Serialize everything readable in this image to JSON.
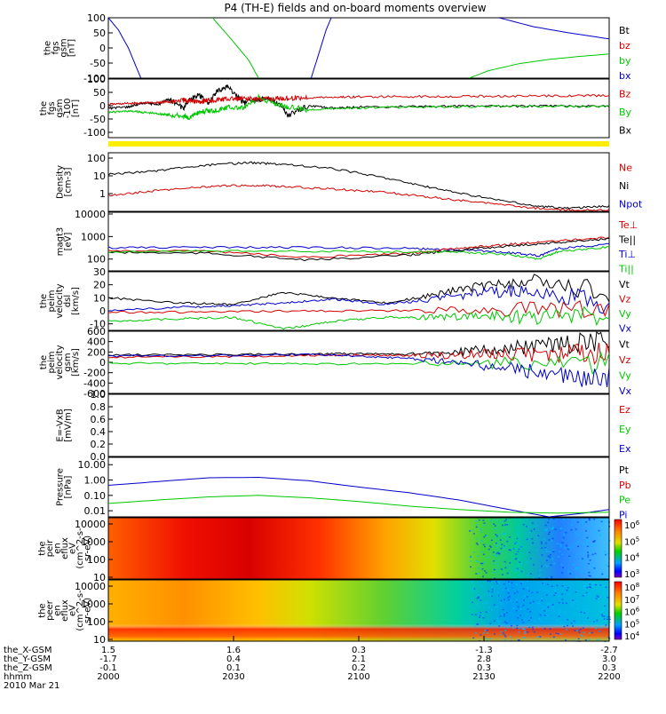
{
  "title": "P4 (TH-E) fields and on-board moments overview",
  "colors": {
    "black": "#000000",
    "red": "#d40000",
    "green": "#00c800",
    "blue": "#0000c8",
    "yellow": "#ffee00"
  },
  "time_axis": {
    "ticks": [
      "2000",
      "2030",
      "2100",
      "2130",
      "2200"
    ],
    "ephemeris": [
      {
        "label": "the_X-GSM",
        "values": [
          "1.5",
          "1.6",
          "0.3",
          "-1.3",
          "-2.7"
        ]
      },
      {
        "label": "the_Y-GSM",
        "values": [
          "-1.7",
          "0.4",
          "2.1",
          "2.8",
          "3.0"
        ]
      },
      {
        "label": "the_Z-GSM",
        "values": [
          "-0.1",
          "0.1",
          "0.2",
          "0.3",
          "0.3"
        ]
      },
      {
        "label": "hhmm",
        "values": [
          "2000",
          "2030",
          "2100",
          "2130",
          "2200"
        ]
      }
    ],
    "date": "2010 Mar 21"
  },
  "chart_data": [
    {
      "type": "line",
      "panel": "fgs",
      "ylabel_lines": [
        "the",
        "fgs",
        "gsm",
        "[nT]"
      ],
      "yticks": [
        "100",
        "50",
        "0",
        "-50",
        "-100"
      ],
      "ylim": [
        -100,
        100
      ],
      "legend": [
        {
          "label": "Bt",
          "color": "black"
        },
        {
          "label": "bz",
          "color": "red"
        },
        {
          "label": "by",
          "color": "green"
        },
        {
          "label": "bx",
          "color": "blue"
        }
      ],
      "series": [
        {
          "name": "bx",
          "color": "blue",
          "segments": [
            [
              [
                0.0,
                100
              ],
              [
                0.02,
                60
              ],
              [
                0.04,
                0
              ],
              [
                0.055,
                -60
              ],
              [
                0.065,
                -100
              ]
            ],
            [
              [
                0.405,
                -100
              ],
              [
                0.42,
                -20
              ],
              [
                0.435,
                60
              ],
              [
                0.445,
                100
              ]
            ],
            [
              [
                0.78,
                100
              ],
              [
                0.85,
                70
              ],
              [
                0.92,
                50
              ],
              [
                1.0,
                30
              ]
            ]
          ]
        },
        {
          "name": "by",
          "color": "green",
          "segments": [
            [
              [
                0.208,
                100
              ],
              [
                0.25,
                20
              ],
              [
                0.28,
                -40
              ],
              [
                0.3,
                -100
              ]
            ],
            [
              [
                0.72,
                -100
              ],
              [
                0.76,
                -75
              ],
              [
                0.82,
                -52
              ],
              [
                0.88,
                -38
              ],
              [
                0.94,
                -28
              ],
              [
                1.0,
                -20
              ]
            ]
          ]
        }
      ]
    },
    {
      "type": "line",
      "panel": "fgs_zoom",
      "ylabel_lines": [
        "the",
        "fgs",
        "gsm",
        "-100",
        "[nT]"
      ],
      "yticks": [
        "100",
        "50",
        "0",
        "-50",
        "-100"
      ],
      "ylim": [
        -120,
        100
      ],
      "legend": [
        {
          "label": "Bz",
          "color": "red"
        },
        {
          "label": "By",
          "color": "green"
        },
        {
          "label": "Bx",
          "color": "black"
        }
      ],
      "series": [
        {
          "name": "Bx",
          "color": "black",
          "x": [
            0,
            0.04,
            0.07,
            0.1,
            0.12,
            0.15,
            0.16,
            0.18,
            0.2,
            0.22,
            0.24,
            0.27,
            0.3,
            0.33,
            0.36,
            0.4,
            0.45,
            0.5,
            0.6,
            0.7,
            0.8,
            0.9,
            1.0
          ],
          "y": [
            -10,
            -5,
            10,
            5,
            25,
            -10,
            20,
            40,
            10,
            60,
            70,
            10,
            25,
            20,
            -35,
            0,
            -10,
            -5,
            -3,
            -2,
            -2,
            -1,
            -1
          ]
        },
        {
          "name": "By",
          "color": "green",
          "x": [
            0,
            0.04,
            0.07,
            0.1,
            0.12,
            0.15,
            0.16,
            0.18,
            0.2,
            0.22,
            0.24,
            0.27,
            0.3,
            0.33,
            0.36,
            0.4,
            0.45,
            0.5,
            0.6,
            0.7,
            0.8,
            0.9,
            1.0
          ],
          "y": [
            -25,
            -20,
            -25,
            -30,
            -35,
            -40,
            -45,
            -25,
            -20,
            -15,
            -5,
            -10,
            30,
            10,
            -5,
            -15,
            -10,
            -8,
            -5,
            -4,
            -3,
            -3,
            -3
          ]
        },
        {
          "name": "Bz",
          "color": "red",
          "x": [
            0,
            0.04,
            0.07,
            0.1,
            0.12,
            0.15,
            0.16,
            0.18,
            0.2,
            0.22,
            0.24,
            0.27,
            0.3,
            0.33,
            0.36,
            0.4,
            0.45,
            0.5,
            0.6,
            0.7,
            0.8,
            0.9,
            1.0
          ],
          "y": [
            5,
            8,
            10,
            12,
            15,
            20,
            18,
            15,
            20,
            22,
            25,
            25,
            25,
            26,
            28,
            30,
            32,
            33,
            34,
            35,
            36,
            37,
            38
          ]
        }
      ]
    },
    {
      "type": "line",
      "panel": "density",
      "ylabel_lines": [
        "Density",
        "[cm-3]"
      ],
      "yticks": [
        "100",
        "10",
        "1"
      ],
      "yscale": "log",
      "ylim": [
        0.1,
        200
      ],
      "legend": [
        {
          "label": "Ne",
          "color": "red"
        },
        {
          "label": "Ni",
          "color": "black"
        },
        {
          "label": "Npot",
          "color": "blue"
        }
      ],
      "series": [
        {
          "name": "Ni",
          "color": "black",
          "x": [
            0,
            0.1,
            0.2,
            0.28,
            0.35,
            0.45,
            0.55,
            0.65,
            0.75,
            0.85,
            0.92,
            1.0
          ],
          "y": [
            12,
            20,
            40,
            55,
            45,
            25,
            8,
            2,
            0.6,
            0.2,
            0.15,
            0.2
          ]
        },
        {
          "name": "Ne",
          "color": "red",
          "x": [
            0,
            0.1,
            0.2,
            0.28,
            0.35,
            0.45,
            0.55,
            0.65,
            0.75,
            0.85,
            0.92,
            1.0
          ],
          "y": [
            0.8,
            1.5,
            2.5,
            3,
            2.5,
            1.8,
            1.2,
            0.6,
            0.3,
            0.15,
            0.12,
            0.12
          ]
        }
      ]
    },
    {
      "type": "line",
      "panel": "temperature",
      "ylabel_lines": [
        "magt3",
        "[eV]"
      ],
      "yticks": [
        "10000",
        "1000",
        "100"
      ],
      "yscale": "log",
      "ylim": [
        30,
        12000
      ],
      "legend": [
        {
          "label": "Te⊥",
          "color": "red"
        },
        {
          "label": "Te||",
          "color": "black"
        },
        {
          "label": "Ti⊥",
          "color": "blue"
        },
        {
          "label": "Ti||",
          "color": "green"
        }
      ],
      "series": [
        {
          "name": "Ti⊥",
          "color": "blue",
          "x": [
            0,
            0.2,
            0.4,
            0.6,
            0.7,
            0.8,
            0.86,
            0.9,
            1.0
          ],
          "y": [
            320,
            330,
            330,
            300,
            250,
            200,
            140,
            300,
            450
          ]
        },
        {
          "name": "Te⊥",
          "color": "red",
          "x": [
            0,
            0.2,
            0.4,
            0.6,
            0.7,
            0.8,
            0.9,
            1.0
          ],
          "y": [
            240,
            230,
            120,
            180,
            300,
            450,
            650,
            900
          ]
        },
        {
          "name": "Te||",
          "color": "black",
          "x": [
            0,
            0.2,
            0.4,
            0.6,
            0.7,
            0.8,
            0.9,
            1.0
          ],
          "y": [
            200,
            180,
            90,
            150,
            250,
            380,
            550,
            800
          ]
        },
        {
          "name": "Ti||",
          "color": "green",
          "x": [
            0,
            0.2,
            0.4,
            0.6,
            0.7,
            0.8,
            0.86,
            0.9,
            1.0
          ],
          "y": [
            210,
            230,
            220,
            210,
            200,
            160,
            100,
            220,
            350
          ]
        }
      ]
    },
    {
      "type": "line",
      "panel": "velocity_dsl",
      "ylabel_lines": [
        "the",
        "peim",
        "velocity",
        "dsl",
        "[km/s]"
      ],
      "yticks": [
        "30",
        "20",
        "10",
        "0",
        "-10"
      ],
      "ylim": [
        -15,
        30
      ],
      "legend": [
        {
          "label": "Vt",
          "color": "black"
        },
        {
          "label": "Vz",
          "color": "red"
        },
        {
          "label": "Vy",
          "color": "green"
        },
        {
          "label": "Vx",
          "color": "blue"
        }
      ],
      "series": [
        {
          "name": "Vt",
          "color": "black",
          "x": [
            0,
            0.15,
            0.25,
            0.35,
            0.45,
            0.55,
            0.65,
            0.75,
            0.85,
            1.0
          ],
          "y": [
            10,
            6,
            5,
            14,
            10,
            6,
            12,
            20,
            22,
            15
          ]
        },
        {
          "name": "Vx",
          "color": "blue",
          "x": [
            0,
            0.15,
            0.25,
            0.35,
            0.45,
            0.55,
            0.65,
            0.75,
            0.85,
            1.0
          ],
          "y": [
            0,
            3,
            4,
            6,
            9,
            5,
            9,
            14,
            15,
            6
          ]
        },
        {
          "name": "Vz",
          "color": "red",
          "x": [
            0,
            0.2,
            0.4,
            0.6,
            0.8,
            1.0
          ],
          "y": [
            -1,
            -1,
            0,
            0,
            1,
            2
          ]
        },
        {
          "name": "Vy",
          "color": "green",
          "x": [
            0,
            0.15,
            0.25,
            0.35,
            0.45,
            0.55,
            0.65,
            0.75,
            0.85,
            1.0
          ],
          "y": [
            -8,
            -6,
            -5,
            -14,
            -8,
            -5,
            -5,
            -4,
            -5,
            -4
          ]
        }
      ]
    },
    {
      "type": "line",
      "panel": "velocity_gsm",
      "ylabel_lines": [
        "the",
        "peim",
        "velocity",
        "gsm",
        "[km/s]"
      ],
      "yticks": [
        "600",
        "400",
        "200",
        "0",
        "-200",
        "-400",
        "-600"
      ],
      "ylim": [
        -600,
        600
      ],
      "legend": [
        {
          "label": "Vt",
          "color": "black"
        },
        {
          "label": "Vz",
          "color": "red"
        },
        {
          "label": "Vy",
          "color": "green"
        },
        {
          "label": "Vx",
          "color": "blue"
        }
      ],
      "series": [
        {
          "name": "Vt",
          "color": "black",
          "x": [
            0,
            0.2,
            0.4,
            0.5,
            0.6,
            0.7,
            0.8,
            0.9,
            1.0
          ],
          "y": [
            140,
            150,
            160,
            170,
            150,
            200,
            280,
            350,
            400
          ]
        },
        {
          "name": "Vz",
          "color": "red",
          "x": [
            0,
            0.2,
            0.4,
            0.5,
            0.6,
            0.7,
            0.8,
            0.9,
            1.0
          ],
          "y": [
            100,
            110,
            130,
            140,
            130,
            140,
            150,
            160,
            170
          ]
        },
        {
          "name": "Vy",
          "color": "green",
          "x": [
            0,
            0.2,
            0.4,
            0.6,
            0.8,
            1.0
          ],
          "y": [
            -20,
            -20,
            -30,
            -30,
            -20,
            -10
          ]
        },
        {
          "name": "Vx",
          "color": "blue",
          "x": [
            0,
            0.2,
            0.4,
            0.5,
            0.6,
            0.7,
            0.8,
            0.9,
            1.0
          ],
          "y": [
            120,
            130,
            150,
            120,
            80,
            0,
            -120,
            -250,
            -320
          ]
        }
      ]
    },
    {
      "type": "line",
      "panel": "efield",
      "ylabel_lines": [
        "E=-VxB",
        "[mV/m]"
      ],
      "yticks": [
        "1.0",
        "0.8",
        "0.6",
        "0.4",
        "0.2",
        "0.0"
      ],
      "ylim": [
        0,
        1
      ],
      "legend": [
        {
          "label": "Ez",
          "color": "red"
        },
        {
          "label": "Ey",
          "color": "green"
        },
        {
          "label": "Ex",
          "color": "blue"
        }
      ],
      "series": []
    },
    {
      "type": "line",
      "panel": "pressure",
      "ylabel_lines": [
        "Pressure",
        "[nPa]"
      ],
      "yticks": [
        "10.00",
        "1.00",
        "0.10",
        "0.01"
      ],
      "yscale": "log",
      "ylim": [
        0.004,
        30
      ],
      "legend": [
        {
          "label": "Pt",
          "color": "black"
        },
        {
          "label": "Pb",
          "color": "red"
        },
        {
          "label": "Pe",
          "color": "green"
        },
        {
          "label": "Pi",
          "color": "blue"
        }
      ],
      "series": [
        {
          "name": "Pi",
          "color": "blue",
          "x": [
            0,
            0.1,
            0.2,
            0.3,
            0.4,
            0.5,
            0.6,
            0.7,
            0.8,
            0.88,
            0.95,
            1.0
          ],
          "y": [
            0.45,
            0.8,
            1.4,
            1.5,
            0.9,
            0.35,
            0.15,
            0.05,
            0.012,
            0.004,
            0.007,
            0.012
          ]
        },
        {
          "name": "Pe",
          "color": "green",
          "x": [
            0,
            0.1,
            0.2,
            0.3,
            0.4,
            0.5,
            0.6,
            0.7,
            0.8,
            0.9,
            1.0
          ],
          "y": [
            0.03,
            0.05,
            0.08,
            0.1,
            0.07,
            0.04,
            0.02,
            0.012,
            0.008,
            0.007,
            0.008
          ]
        }
      ]
    },
    {
      "type": "heatmap",
      "panel": "ion_spectrogram",
      "ylabel_lines": [
        "the",
        "peir",
        "en",
        "eflux",
        "eV",
        "(cm^2-s-",
        "sr-eV)"
      ],
      "yticks": [
        "10000",
        "1000",
        "100",
        "10"
      ],
      "yscale": "log",
      "colorbar_ticks": [
        "10^6",
        "10^5",
        "10^4",
        "10^3"
      ]
    },
    {
      "type": "heatmap",
      "panel": "electron_spectrogram",
      "ylabel_lines": [
        "the",
        "peer",
        "en",
        "eflux",
        "eV",
        "(cm^2-s-",
        "sr-eV)"
      ],
      "yticks": [
        "10000",
        "1000",
        "100",
        "10"
      ],
      "yscale": "log",
      "colorbar_ticks": [
        "10^8",
        "10^7",
        "10^6",
        "10^5",
        "10^4"
      ]
    }
  ]
}
